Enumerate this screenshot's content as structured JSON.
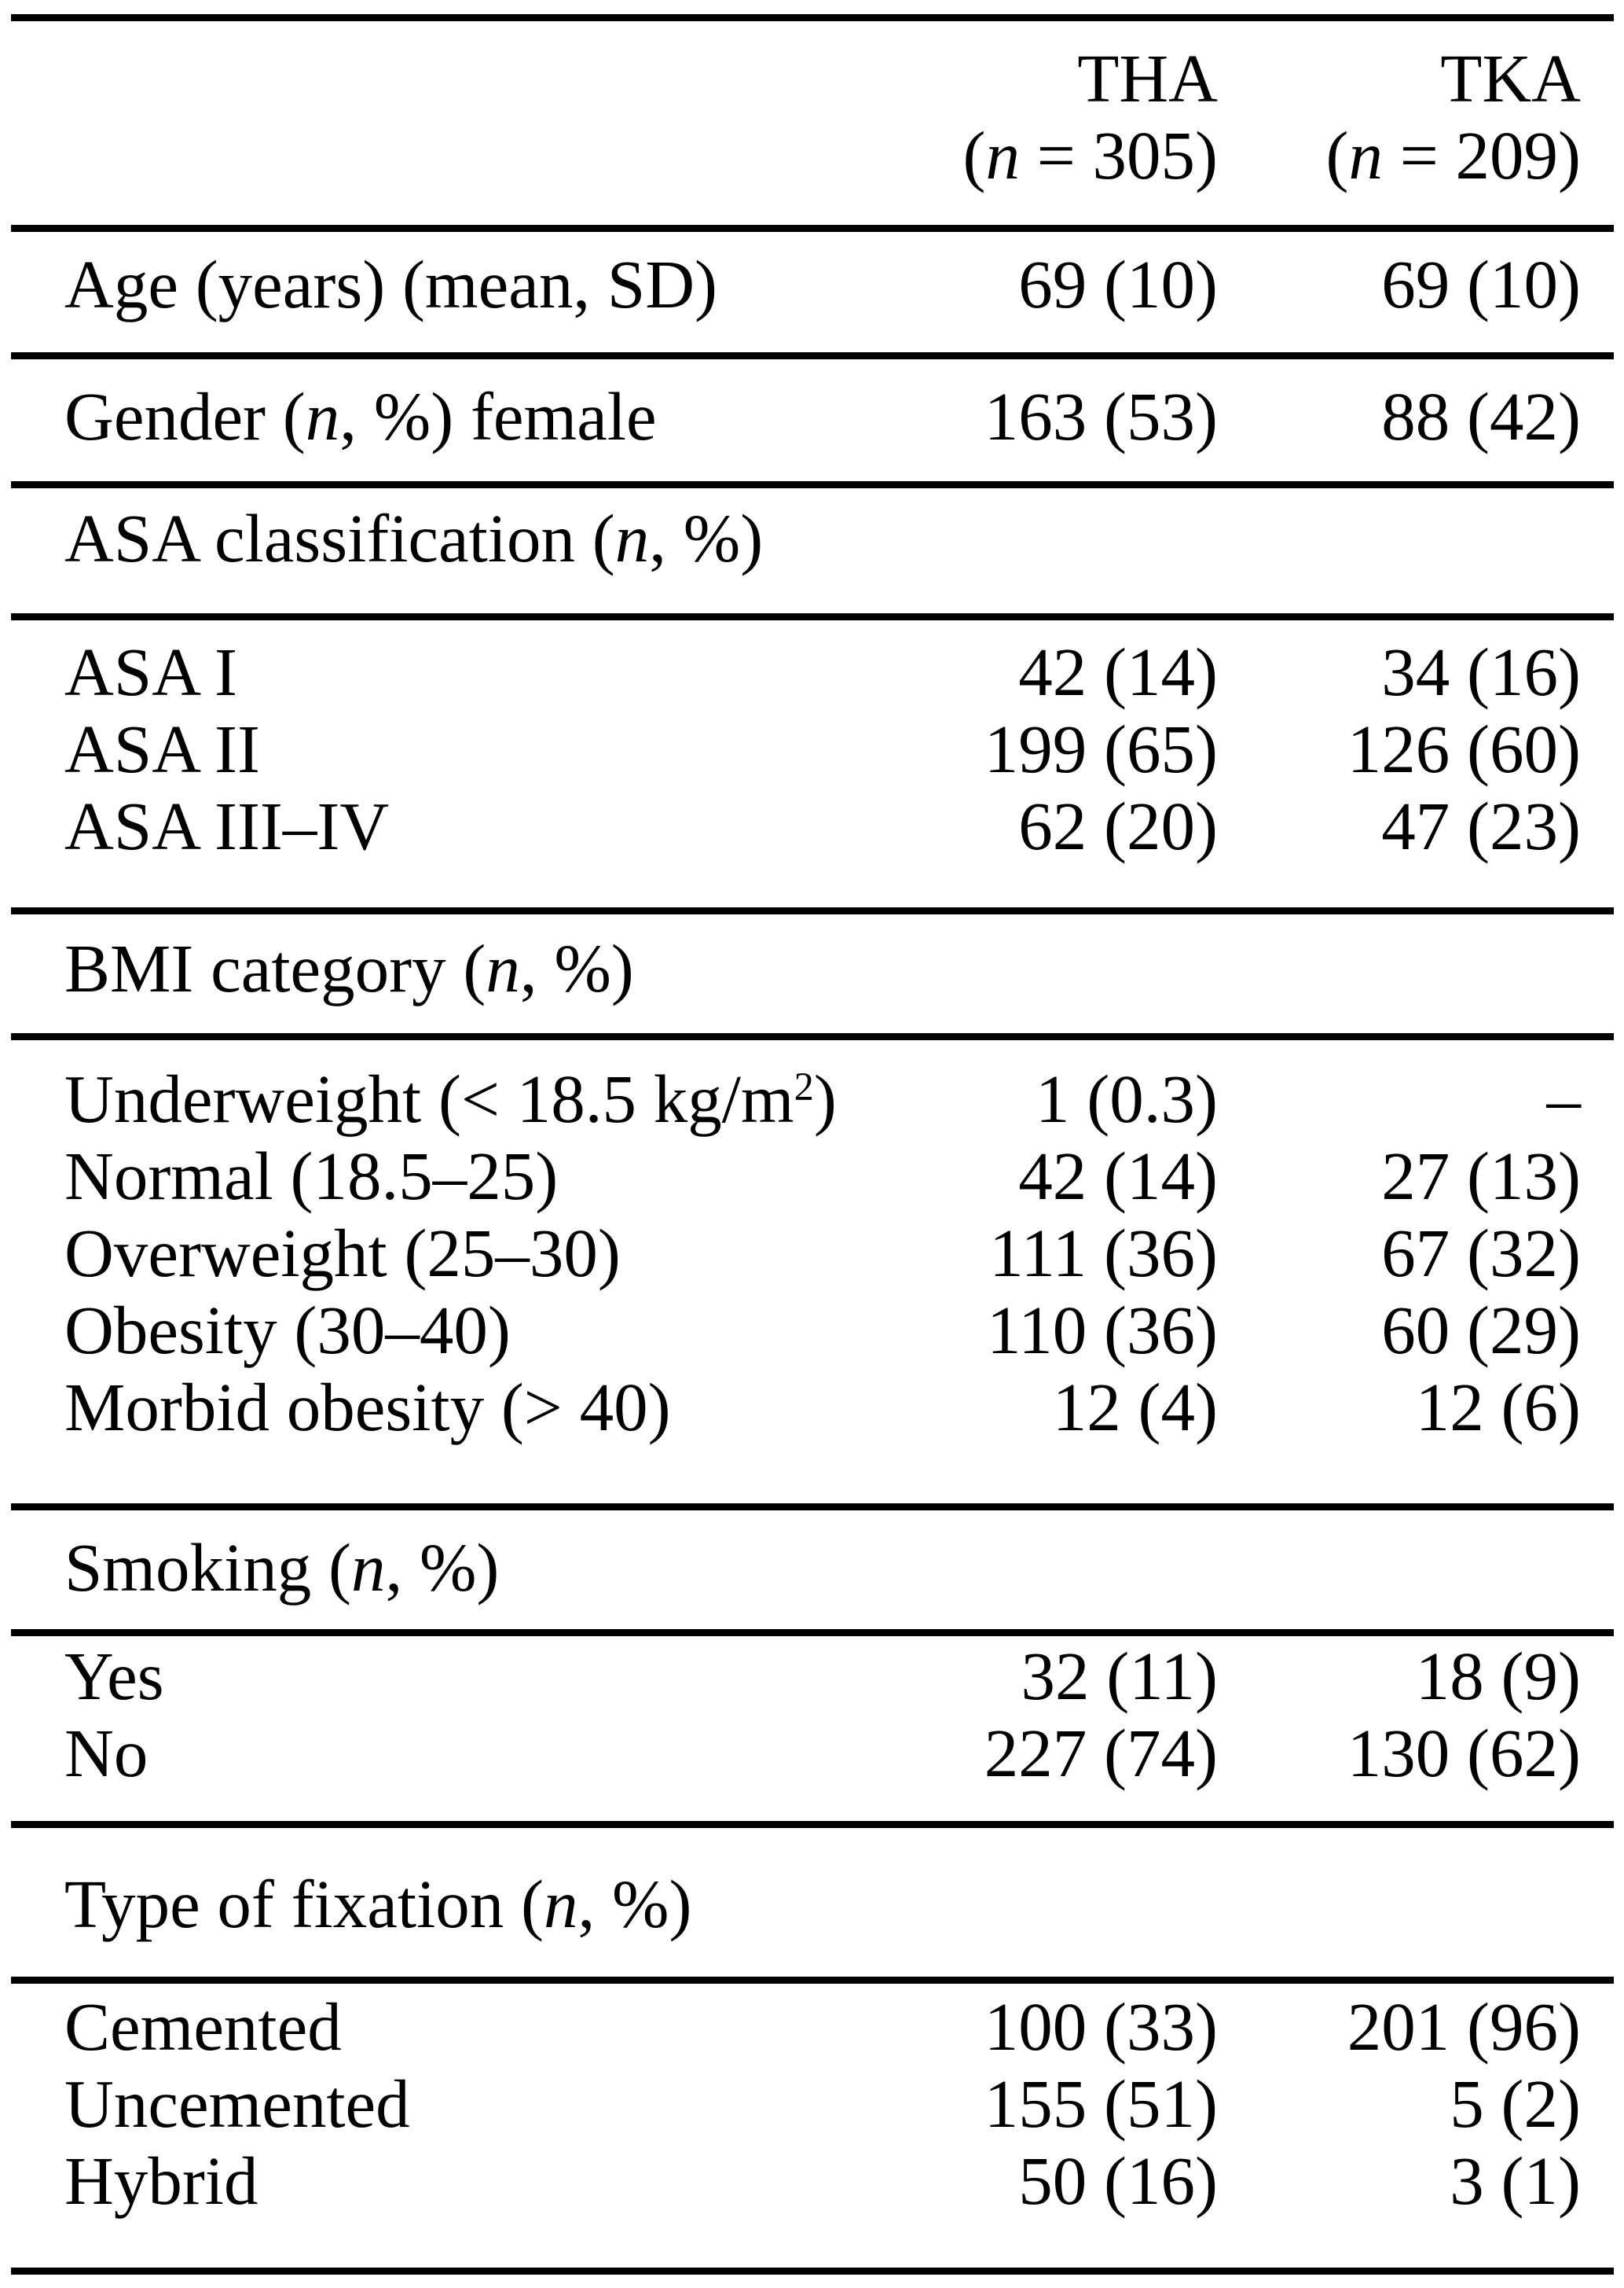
{
  "table": {
    "columns": [
      {
        "line1": "THA",
        "line2": "(*n* = 305)"
      },
      {
        "line1": "TKA",
        "line2": "(*n* = 209)"
      }
    ],
    "groups": [
      {
        "rows": [
          {
            "label": "Age (years) (mean, SD)",
            "tha": "69 (10)",
            "tka": "69 (10)"
          }
        ]
      },
      {
        "rows": [
          {
            "label": "Gender (*n*, %) female",
            "tha": "163 (53)",
            "tka": "88 (42)"
          }
        ]
      },
      {
        "header": "ASA classification (*n*, %)",
        "rows": [
          {
            "label": "ASA I",
            "tha": "42 (14)",
            "tka": "34 (16)"
          },
          {
            "label": "ASA II",
            "tha": "199 (65)",
            "tka": "126 (60)"
          },
          {
            "label": "ASA III–IV",
            "tha": "62 (20)",
            "tka": "47 (23)"
          }
        ]
      },
      {
        "header": "BMI category (*n*, %)",
        "rows": [
          {
            "label": "Underweight (< 18.5 kg/m^2^)",
            "tha": "1 (0.3)",
            "tka": "–"
          },
          {
            "label": "Normal (18.5–25)",
            "tha": "42 (14)",
            "tka": "27 (13)"
          },
          {
            "label": "Overweight (25–30)",
            "tha": "111 (36)",
            "tka": "67 (32)"
          },
          {
            "label": "Obesity (30–40)",
            "tha": "110 (36)",
            "tka": "60 (29)"
          },
          {
            "label": "Morbid obesity (> 40)",
            "tha": "12 (4)",
            "tka": "12 (6)"
          }
        ]
      },
      {
        "header": "Smoking (*n*, %)",
        "rows": [
          {
            "label": "Yes",
            "tha": "32 (11)",
            "tka": "18 (9)"
          },
          {
            "label": "No",
            "tha": "227 (74)",
            "tka": "130 (62)"
          }
        ]
      },
      {
        "header": "Type of fixation (*n*, %)",
        "rows": [
          {
            "label": "Cemented",
            "tha": "100 (33)",
            "tka": "201 (96)"
          },
          {
            "label": "Uncemented",
            "tha": "155 (51)",
            "tka": "5 (2)"
          },
          {
            "label": "Hybrid",
            "tha": "50 (16)",
            "tka": "3 (1)"
          }
        ]
      }
    ]
  }
}
